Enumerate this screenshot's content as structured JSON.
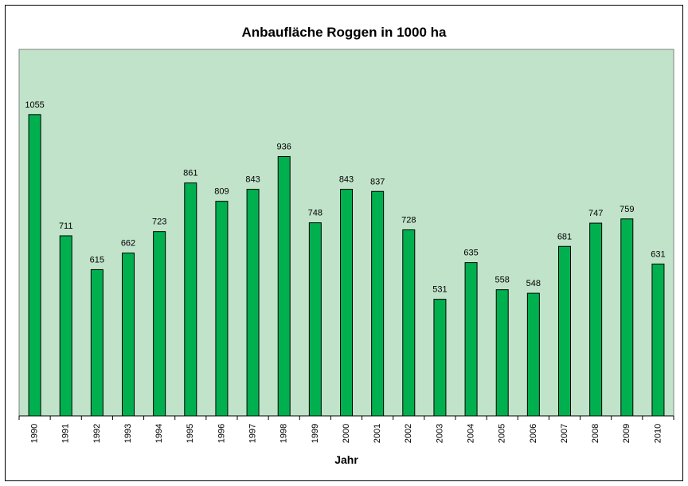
{
  "chart_data": {
    "type": "bar",
    "title": "Anbaufläche Roggen in 1000 ha",
    "x_label": "Jahr",
    "categories": [
      "1990",
      "1991",
      "1992",
      "1993",
      "1994",
      "1995",
      "1996",
      "1997",
      "1998",
      "1999",
      "2000",
      "2001",
      "2002",
      "2003",
      "2004",
      "2005",
      "2006",
      "2007",
      "2008",
      "2009",
      "2010"
    ],
    "values": [
      1055,
      711,
      615,
      662,
      723,
      861,
      809,
      843,
      936,
      748,
      843,
      837,
      728,
      531,
      635,
      558,
      548,
      681,
      747,
      759,
      631
    ],
    "color": "#00b04f",
    "plot_color": "#c0e3c9",
    "ylim": [
      200,
      1240
    ]
  }
}
